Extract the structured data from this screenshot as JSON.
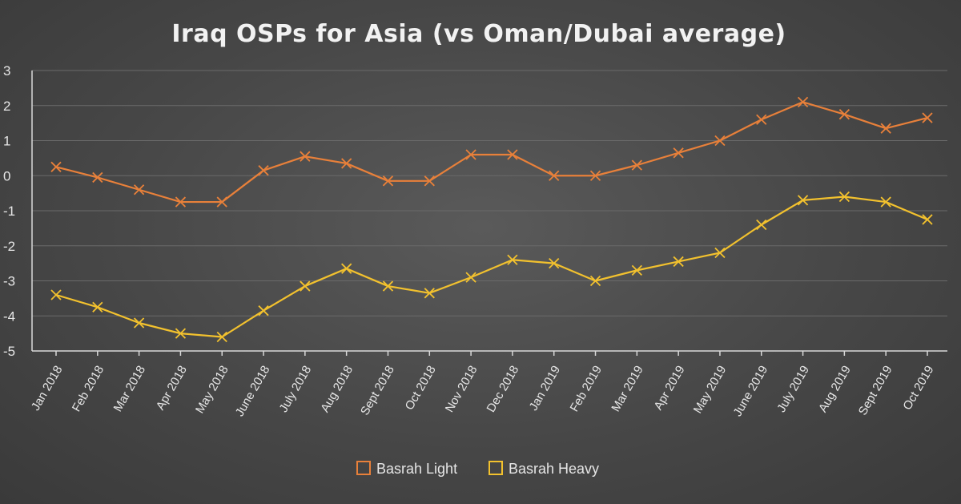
{
  "chart_data": {
    "type": "line",
    "title": "Iraq OSPs for Asia (vs Oman/Dubai average)",
    "xlabel": "",
    "ylabel": "",
    "ylim": [
      -5,
      3
    ],
    "yticks": [
      3,
      2,
      1,
      0,
      -1,
      -2,
      -3,
      -4,
      -5
    ],
    "grid": true,
    "legend_position": "bottom",
    "categories": [
      "Jan 2018",
      "Feb 2018",
      "Mar 2018",
      "Apr 2018",
      "May 2018",
      "June 2018",
      "July 2018",
      "Aug 2018",
      "Sept 2018",
      "Oct 2018",
      "Nov 2018",
      "Dec 2018",
      "Jan 2019",
      "Feb 2019",
      "Mar 2019",
      "Apr 2019",
      "May 2019",
      "June 2019",
      "July 2019",
      "Aug 2019",
      "Sept 2019",
      "Oct 2019"
    ],
    "series": [
      {
        "name": "Basrah Light",
        "color": "#e8803a",
        "marker": "x",
        "values": [
          0.25,
          -0.05,
          -0.4,
          -0.75,
          -0.75,
          0.15,
          0.55,
          0.35,
          -0.15,
          -0.15,
          0.6,
          0.6,
          0.0,
          0.0,
          0.3,
          0.65,
          1.0,
          1.6,
          2.1,
          1.75,
          1.35,
          1.65
        ]
      },
      {
        "name": "Basrah Heavy",
        "color": "#f2c12e",
        "marker": "x",
        "values": [
          -3.4,
          -3.75,
          -4.2,
          -4.5,
          -4.6,
          -3.85,
          -3.15,
          -2.65,
          -3.15,
          -3.35,
          -2.9,
          -2.4,
          -2.5,
          -3.0,
          -2.7,
          -2.45,
          -2.2,
          -1.4,
          -0.7,
          -0.6,
          -0.75,
          -1.25
        ]
      }
    ]
  }
}
